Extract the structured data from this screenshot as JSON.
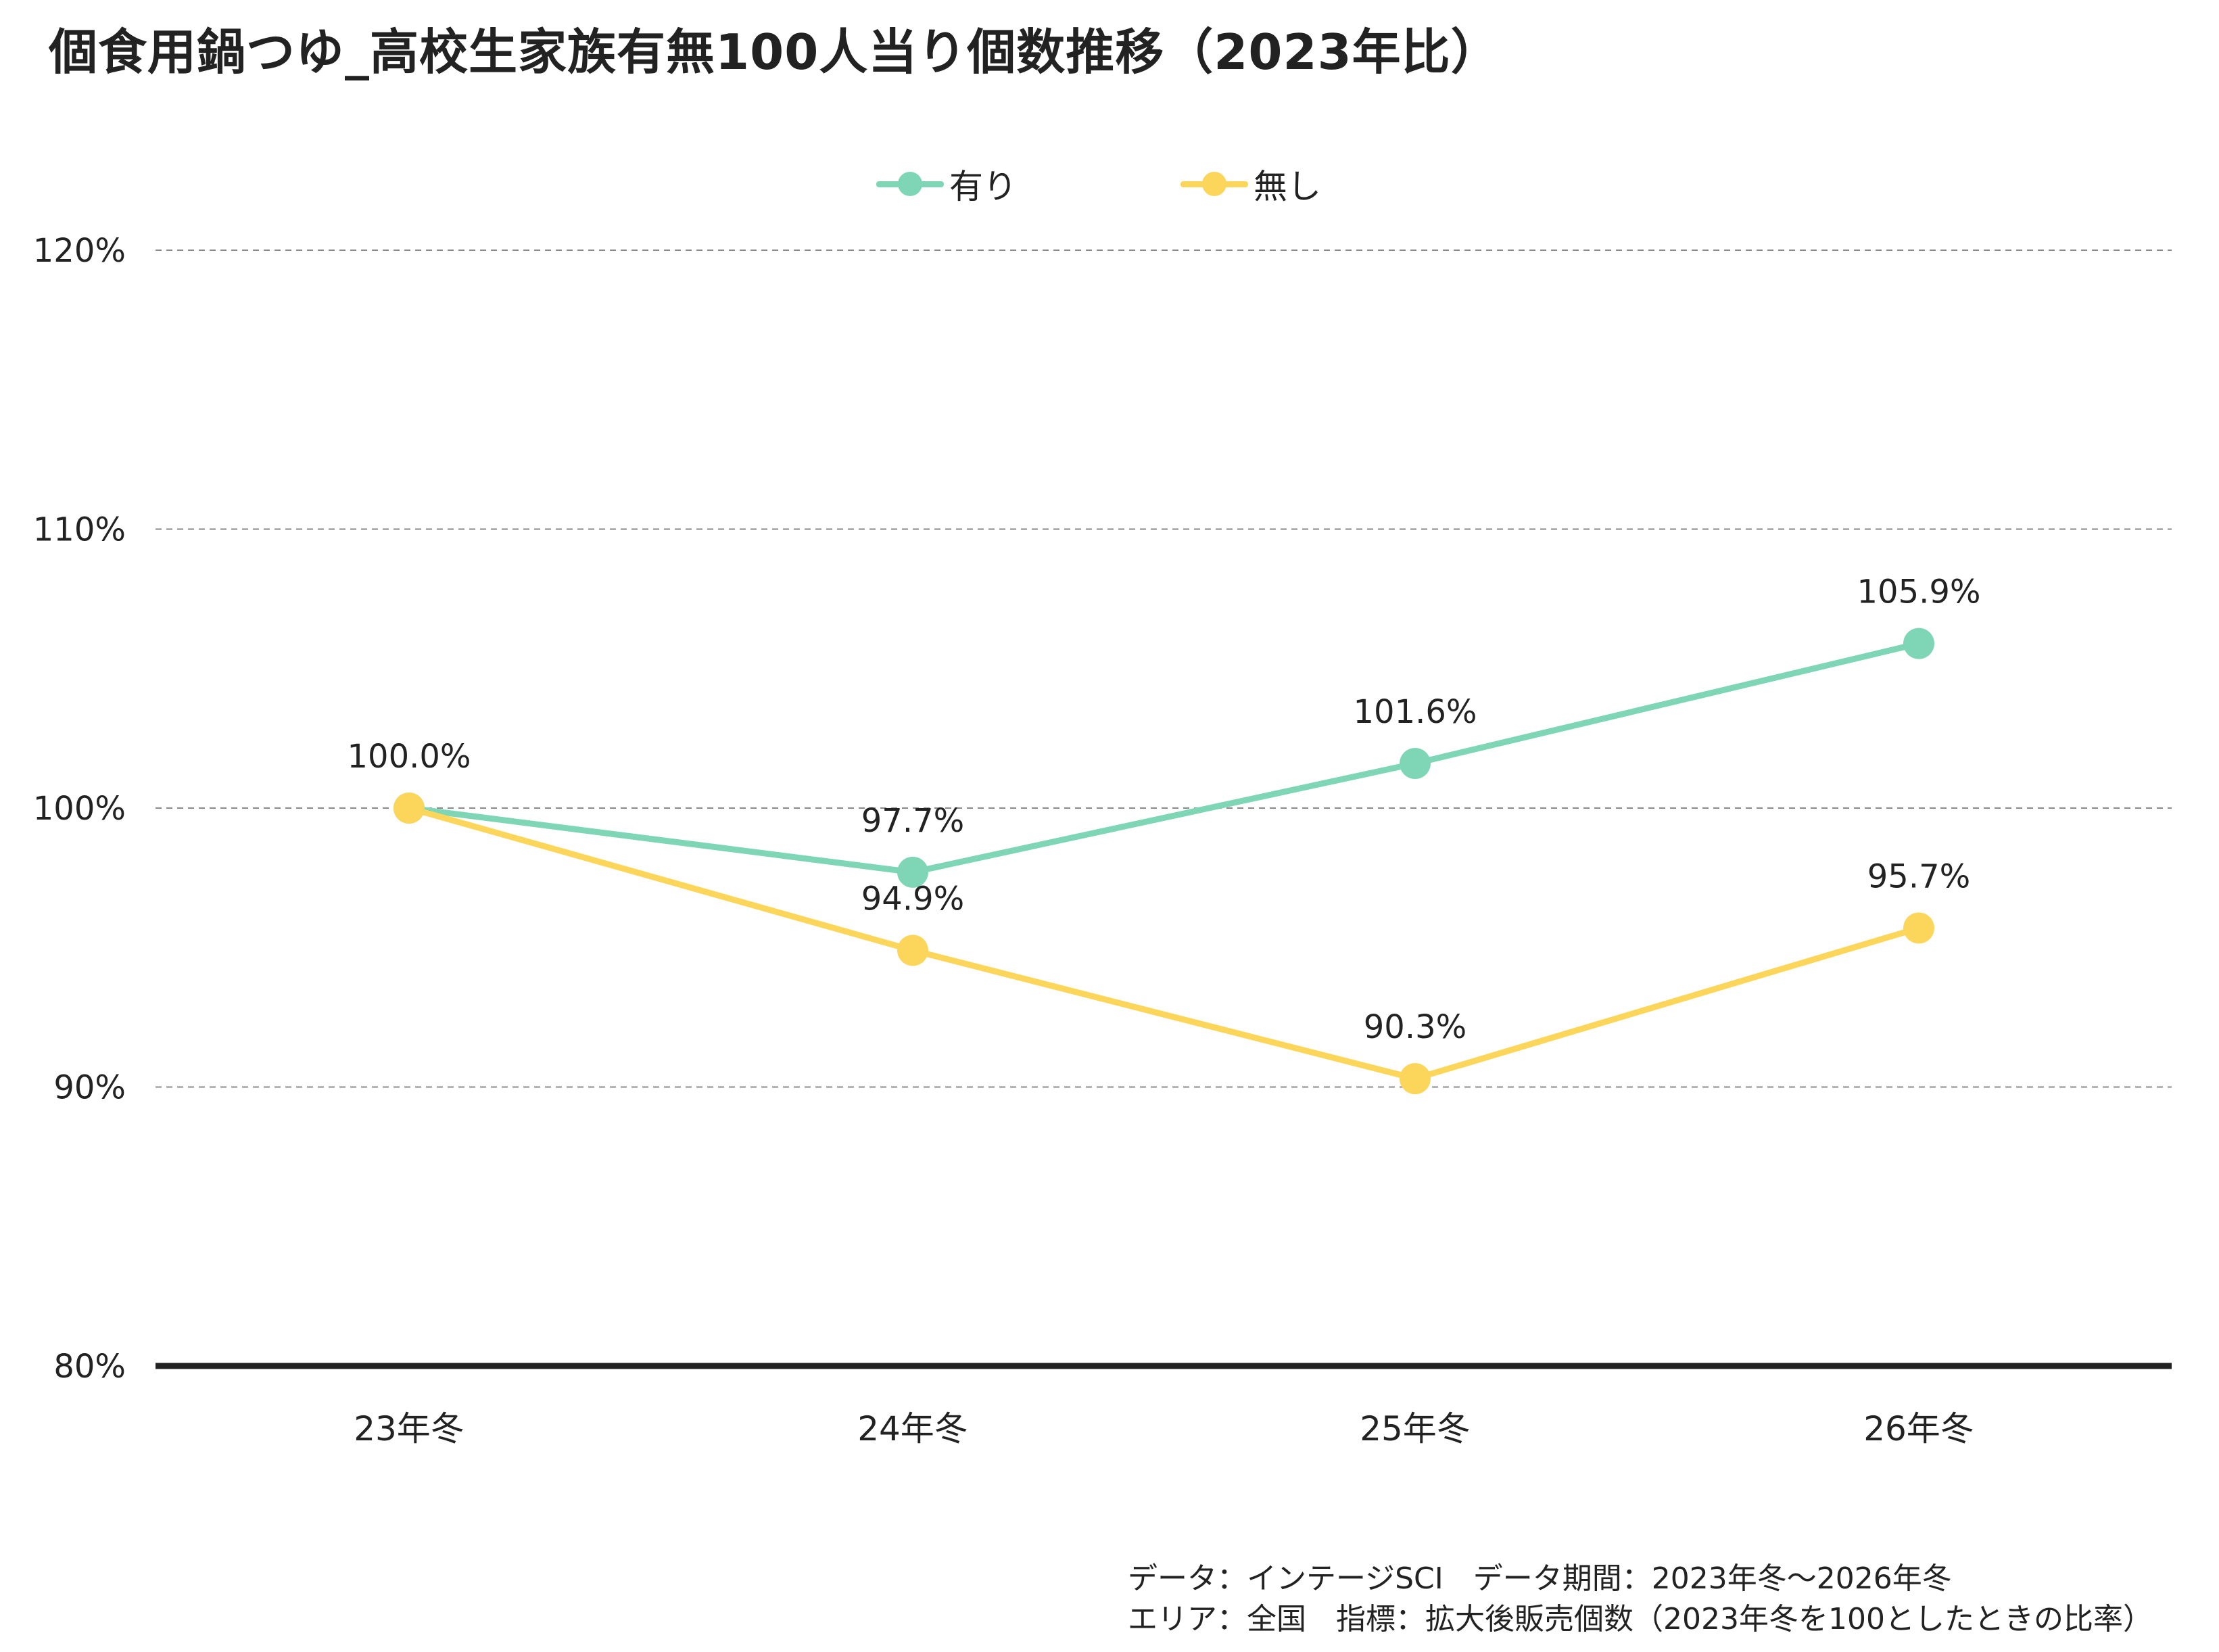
{
  "title": "個食用鍋つゆ_高校生家族有無100人当り個数推移（2023年比）",
  "chart_data": {
    "type": "line",
    "categories": [
      "23年冬",
      "24年冬",
      "25年冬",
      "26年冬"
    ],
    "series": [
      {
        "name": "有り",
        "color": "#7fd6b6",
        "values": [
          100.0,
          97.7,
          101.6,
          105.9
        ],
        "labels": [
          "100.0%",
          "97.7%",
          "101.6%",
          "105.9%"
        ]
      },
      {
        "name": "無し",
        "color": "#fbd65a",
        "values": [
          100.0,
          94.9,
          90.3,
          95.7
        ],
        "labels": [
          "",
          "94.9%",
          "90.3%",
          "95.7%"
        ]
      }
    ],
    "ylim": [
      80,
      120
    ],
    "yticks": [
      80,
      90,
      100,
      110,
      120
    ],
    "ytick_labels": [
      "80%",
      "90%",
      "100%",
      "110%",
      "120%"
    ],
    "grid": "horizontal dashed",
    "legend_position": "top-center"
  },
  "footnote": {
    "line1": "データ：インテージSCI　データ期間：2023年冬～2026年冬",
    "line2": "エリア：全国　指標：拡大後販売個数（2023年冬を100としたときの比率）"
  }
}
